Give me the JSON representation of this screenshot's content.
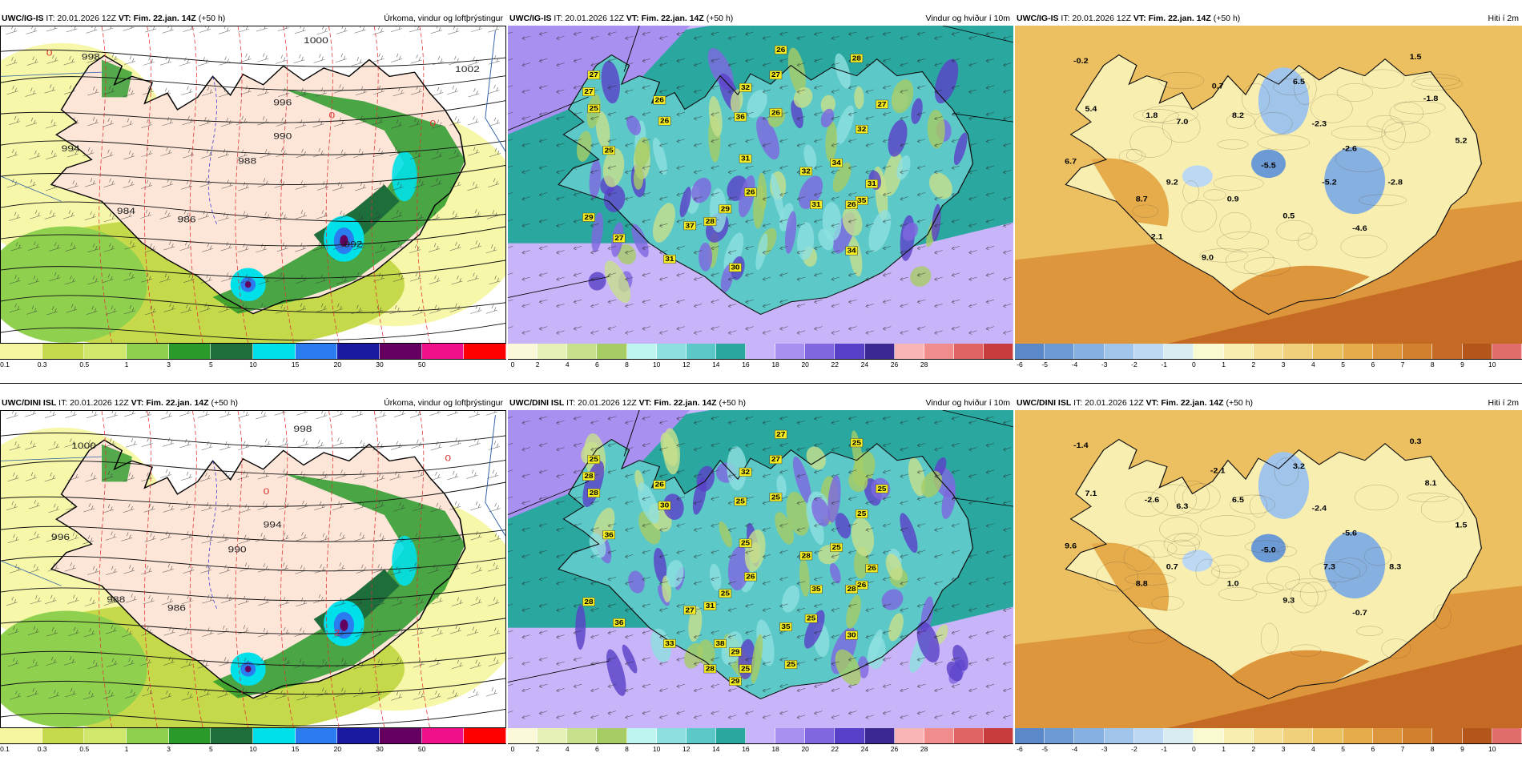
{
  "panels": [
    {
      "id": "p11",
      "model": "UWC/IG-IS",
      "it": "IT: 20.01.2026 12Z",
      "vt_label": "VT:",
      "vt": "Fim. 22.jan. 14Z",
      "lead": "(+50 h)",
      "title": "Úrkoma, vindur og loftþrýstingur",
      "scale_colors": [
        "#f6f6a0",
        "#c6d94a",
        "#cfe86b",
        "#8fd14f",
        "#2a9a2a",
        "#1e6e3b",
        "#00e0e8",
        "#2a7cf0",
        "#1a1aa0",
        "#640060",
        "#f0108c",
        "#ff0000"
      ],
      "tick_labels": [
        "0.1",
        "0.3",
        "0.5",
        "1",
        "3",
        "5",
        "10",
        "15",
        "20",
        "30",
        "50"
      ],
      "labels": [
        {
          "t": "1000"
        },
        {
          "t": "998"
        },
        {
          "t": "994"
        },
        {
          "t": "990"
        },
        {
          "t": "988"
        },
        {
          "t": "984"
        },
        {
          "t": "986"
        },
        {
          "t": "1002"
        },
        {
          "t": "996"
        },
        {
          "t": "992"
        },
        {
          "t": "0"
        },
        {
          "t": "0"
        },
        {
          "t": "0"
        }
      ]
    },
    {
      "id": "p12",
      "model": "UWC/IG-IS",
      "it": "IT: 20.01.2026 12Z",
      "vt_label": "VT:",
      "vt": "Fim. 22.jan. 14Z",
      "lead": "(+50 h)",
      "title": "Vindur og hviður í 10m",
      "scale_colors": [
        "#fafad8",
        "#e4f0b4",
        "#c8e08c",
        "#a8cc64",
        "#bff5f0",
        "#8ee0e0",
        "#5cc8c8",
        "#2aa8a0",
        "#c8b4f8",
        "#a890f0",
        "#8066e0",
        "#5a40c8",
        "#3c2890",
        "#f8b4b4",
        "#f08c8c",
        "#e06464",
        "#c83c3c"
      ],
      "tick_labels": [
        "0",
        "2",
        "4",
        "6",
        "8",
        "10",
        "12",
        "14",
        "16",
        "18",
        "20",
        "22",
        "24",
        "26",
        "28"
      ],
      "gusts": [
        {
          "t": "26"
        },
        {
          "t": "27"
        },
        {
          "t": "28"
        },
        {
          "t": "27"
        },
        {
          "t": "27"
        },
        {
          "t": "32"
        },
        {
          "t": "25"
        },
        {
          "t": "26"
        },
        {
          "t": "36"
        },
        {
          "t": "26"
        },
        {
          "t": "26"
        },
        {
          "t": "27"
        },
        {
          "t": "32"
        },
        {
          "t": "25"
        },
        {
          "t": "34"
        },
        {
          "t": "31"
        },
        {
          "t": "32"
        },
        {
          "t": "31"
        },
        {
          "t": "26"
        },
        {
          "t": "35"
        },
        {
          "t": "26"
        },
        {
          "t": "31"
        },
        {
          "t": "29"
        },
        {
          "t": "28"
        },
        {
          "t": "29"
        },
        {
          "t": "37"
        },
        {
          "t": "27"
        },
        {
          "t": "34"
        },
        {
          "t": "31"
        },
        {
          "t": "30"
        }
      ]
    },
    {
      "id": "p13",
      "model": "UWC/IG-IS",
      "it": "IT: 20.01.2026 12Z",
      "vt_label": "VT:",
      "vt": "Fim. 22.jan. 14Z",
      "lead": "(+50 h)",
      "title": "Hiti í 2m",
      "scale_colors": [
        "#5a88c8",
        "#6c9ad4",
        "#86b0e0",
        "#a0c4ea",
        "#bcd8f2",
        "#d8ecf0",
        "#fafad0",
        "#f8eeb0",
        "#f4e094",
        "#f0d07a",
        "#ecc060",
        "#e6ac4c",
        "#de963c",
        "#d2802e",
        "#c46a24",
        "#b4561c",
        "#e06c6c"
      ],
      "tick_labels": [
        "-6",
        "-5",
        "-4",
        "-3",
        "-2",
        "-1",
        "0",
        "1",
        "2",
        "3",
        "4",
        "5",
        "6",
        "7",
        "8",
        "9",
        "10"
      ],
      "values": [
        {
          "t": "-0.2"
        },
        {
          "t": "1.5"
        },
        {
          "t": "0.7"
        },
        {
          "t": "6.5"
        },
        {
          "t": "-1.8"
        },
        {
          "t": "5.4"
        },
        {
          "t": "1.8"
        },
        {
          "t": "7.0"
        },
        {
          "t": "8.2"
        },
        {
          "t": "-2.3"
        },
        {
          "t": "5.2"
        },
        {
          "t": "-2.6"
        },
        {
          "t": "6.7"
        },
        {
          "t": "-5.5"
        },
        {
          "t": "9.2"
        },
        {
          "t": "-5.2"
        },
        {
          "t": "-2.8"
        },
        {
          "t": "0.9"
        },
        {
          "t": "8.7"
        },
        {
          "t": "0.5"
        },
        {
          "t": "-4.6"
        },
        {
          "t": "2.1"
        },
        {
          "t": "9.0"
        }
      ]
    },
    {
      "id": "p21",
      "model": "UWC/DINI ISL",
      "it": "IT: 20.01.2026 12Z",
      "vt_label": "VT:",
      "vt": "Fim. 22.jan. 14Z",
      "lead": "(+50 h)",
      "title": "Úrkoma, vindur og loftþrýstingur",
      "scale_colors": [
        "#f6f6a0",
        "#c6d94a",
        "#cfe86b",
        "#8fd14f",
        "#2a9a2a",
        "#1e6e3b",
        "#00e0e8",
        "#2a7cf0",
        "#1a1aa0",
        "#640060",
        "#f0108c",
        "#ff0000"
      ],
      "tick_labels": [
        "0.1",
        "0.3",
        "0.5",
        "1",
        "3",
        "5",
        "10",
        "15",
        "20",
        "30",
        "50"
      ],
      "labels": [
        {
          "t": "998"
        },
        {
          "t": "1000"
        },
        {
          "t": "996"
        },
        {
          "t": "994"
        },
        {
          "t": "990"
        },
        {
          "t": "988"
        },
        {
          "t": "986"
        },
        {
          "t": "0"
        },
        {
          "t": "0"
        },
        {
          "t": "2"
        }
      ]
    },
    {
      "id": "p22",
      "model": "UWC/DINI ISL",
      "it": "IT: 20.01.2026 12Z",
      "vt_label": "VT:",
      "vt": "Fim. 22.jan. 14Z",
      "lead": "(+50 h)",
      "title": "Vindur og hviður í 10m",
      "scale_colors": [
        "#fafad8",
        "#e4f0b4",
        "#c8e08c",
        "#a8cc64",
        "#bff5f0",
        "#8ee0e0",
        "#5cc8c8",
        "#2aa8a0",
        "#c8b4f8",
        "#a890f0",
        "#8066e0",
        "#5a40c8",
        "#3c2890",
        "#f8b4b4",
        "#f08c8c",
        "#e06464",
        "#c83c3c"
      ],
      "tick_labels": [
        "0",
        "2",
        "4",
        "6",
        "8",
        "10",
        "12",
        "14",
        "16",
        "18",
        "20",
        "22",
        "24",
        "26",
        "28"
      ],
      "gusts": [
        {
          "t": "27"
        },
        {
          "t": "25"
        },
        {
          "t": "25"
        },
        {
          "t": "28"
        },
        {
          "t": "27"
        },
        {
          "t": "32"
        },
        {
          "t": "28"
        },
        {
          "t": "26"
        },
        {
          "t": "25"
        },
        {
          "t": "25"
        },
        {
          "t": "30"
        },
        {
          "t": "25"
        },
        {
          "t": "25"
        },
        {
          "t": "36"
        },
        {
          "t": "25"
        },
        {
          "t": "25"
        },
        {
          "t": "28"
        },
        {
          "t": "26"
        },
        {
          "t": "26"
        },
        {
          "t": "26"
        },
        {
          "t": "28"
        },
        {
          "t": "35"
        },
        {
          "t": "25"
        },
        {
          "t": "31"
        },
        {
          "t": "28"
        },
        {
          "t": "27"
        },
        {
          "t": "36"
        },
        {
          "t": "30"
        },
        {
          "t": "33"
        },
        {
          "t": "29"
        },
        {
          "t": "28"
        },
        {
          "t": "25"
        },
        {
          "t": "25"
        },
        {
          "t": "35"
        },
        {
          "t": "38"
        },
        {
          "t": "25"
        },
        {
          "t": "29"
        }
      ]
    },
    {
      "id": "p23",
      "model": "UWC/DINI ISL",
      "it": "IT: 20.01.2026 12Z",
      "vt_label": "VT:",
      "vt": "Fim. 22.jan. 14Z",
      "lead": "(+50 h)",
      "title": "Hiti í 2m",
      "scale_colors": [
        "#5a88c8",
        "#6c9ad4",
        "#86b0e0",
        "#a0c4ea",
        "#bcd8f2",
        "#d8ecf0",
        "#fafad0",
        "#f8eeb0",
        "#f4e094",
        "#f0d07a",
        "#ecc060",
        "#e6ac4c",
        "#de963c",
        "#d2802e",
        "#c46a24",
        "#b4561c",
        "#e06c6c"
      ],
      "tick_labels": [
        "-6",
        "-5",
        "-4",
        "-3",
        "-2",
        "-1",
        "0",
        "1",
        "2",
        "3",
        "4",
        "5",
        "6",
        "7",
        "8",
        "9",
        "10"
      ],
      "values": [
        {
          "t": "-1.4"
        },
        {
          "t": "0.3"
        },
        {
          "t": "-2.1"
        },
        {
          "t": "3.2"
        },
        {
          "t": "8.1"
        },
        {
          "t": "7.1"
        },
        {
          "t": "-2.6"
        },
        {
          "t": "6.3"
        },
        {
          "t": "6.5"
        },
        {
          "t": "-2.4"
        },
        {
          "t": "1.5"
        },
        {
          "t": "-5.6"
        },
        {
          "t": "9.6"
        },
        {
          "t": "-5.0"
        },
        {
          "t": "0.7"
        },
        {
          "t": "7.3"
        },
        {
          "t": "8.3"
        },
        {
          "t": "1.0"
        },
        {
          "t": "8.8"
        },
        {
          "t": "9.3"
        },
        {
          "t": "-0.7"
        }
      ]
    }
  ]
}
